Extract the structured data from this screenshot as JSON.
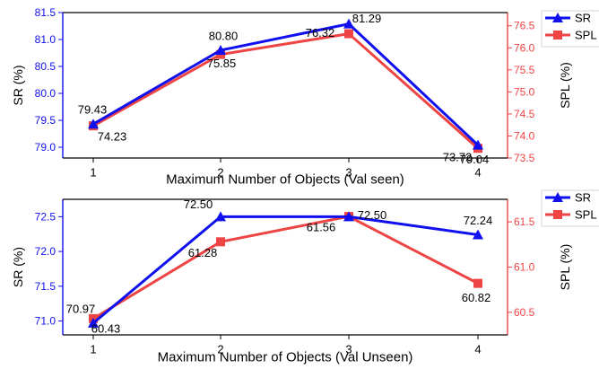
{
  "colors": {
    "sr": "#1010ee",
    "spl": "#ee4444",
    "axis": "#000000"
  },
  "chart_data": [
    {
      "type": "line",
      "xlabel": "Maximum Number of Objects (Val seen)",
      "ylabel": "SR (%)",
      "ylabel_right": "SPL (%)",
      "x": [
        1,
        2,
        3,
        4
      ],
      "xticks": [
        "1",
        "2",
        "3",
        "4"
      ],
      "ylim": [
        78.8,
        81.5
      ],
      "yticks": [
        "79.0",
        "79.5",
        "80.0",
        "80.5",
        "81.0",
        "81.5"
      ],
      "ylim_right": [
        73.5,
        76.8
      ],
      "yticks_right": [
        "73.5",
        "74.0",
        "74.5",
        "75.0",
        "75.5",
        "76.0",
        "76.5"
      ],
      "legend_position": "top-right-outside",
      "series": [
        {
          "name": "SR",
          "axis": "left",
          "marker": "triangle",
          "values": [
            79.43,
            80.8,
            81.29,
            79.04
          ],
          "labels": [
            "79.43",
            "80.80",
            "81.29",
            "79.04"
          ]
        },
        {
          "name": "SPL",
          "axis": "right",
          "marker": "square",
          "values": [
            74.23,
            75.85,
            76.32,
            73.72
          ],
          "labels": [
            "74.23",
            "75.85",
            "76.32",
            "73.72"
          ]
        }
      ]
    },
    {
      "type": "line",
      "xlabel": "Maximum Number of Objects (Val Unseen)",
      "ylabel": "SR (%)",
      "ylabel_right": "SPL (%)",
      "x": [
        1,
        2,
        3,
        4
      ],
      "xticks": [
        "1",
        "2",
        "3",
        "4"
      ],
      "ylim": [
        70.8,
        72.75
      ],
      "yticks": [
        "71.0",
        "71.5",
        "72.0",
        "72.5"
      ],
      "ylim_right": [
        60.25,
        61.75
      ],
      "yticks_right": [
        "60.5",
        "61.0",
        "61.5"
      ],
      "legend_position": "top-right-outside",
      "series": [
        {
          "name": "SR",
          "axis": "left",
          "marker": "triangle",
          "values": [
            70.97,
            72.5,
            72.5,
            72.24
          ],
          "labels": [
            "70.97",
            "72.50",
            "72.50",
            "72.24"
          ]
        },
        {
          "name": "SPL",
          "axis": "right",
          "marker": "square",
          "values": [
            60.43,
            61.28,
            61.56,
            60.82
          ],
          "labels": [
            "60.43",
            "61.28",
            "61.56",
            "60.82"
          ]
        }
      ]
    }
  ]
}
